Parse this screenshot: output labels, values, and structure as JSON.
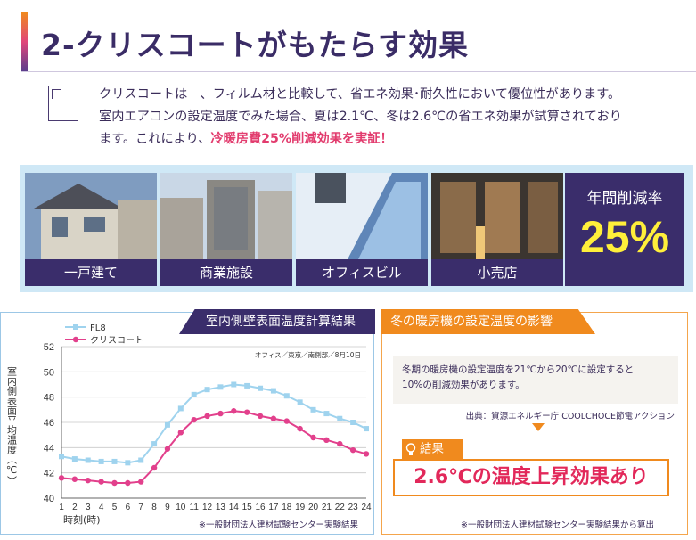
{
  "header": {
    "title": "2-クリスコートがもたらす効果"
  },
  "intro": {
    "line1": "クリスコートは　、フィルム材と比較して、省エネ効果･耐久性において優位性があります。",
    "line2": "室内エアコンの設定温度でみた場合、夏は2.1℃、冬は2.6℃の省エネ効果が試算されており",
    "line3_prefix": "ます。これにより、",
    "line3_highlight": "冷暖房費25%削減効果を実証！"
  },
  "buildings": [
    {
      "label": "一戸建て"
    },
    {
      "label": "商業施設"
    },
    {
      "label": "オフィスビル"
    },
    {
      "label": "小売店"
    }
  ],
  "reduction": {
    "label": "年間削減率",
    "value": "25%"
  },
  "chart_panel": {
    "heading": "室内側壁表面温度計算結果",
    "footnote": "※一般財団法人建材試験センター実験結果"
  },
  "chart_data": {
    "type": "line",
    "ylabel": "室内側表面平均温度（℃）",
    "xlabel": "時刻(時)",
    "annotation": "オフィス／東京／南側部／8月10日",
    "ylim": [
      40,
      52
    ],
    "yticks": [
      40,
      42,
      44,
      46,
      48,
      50,
      52
    ],
    "x": [
      1,
      2,
      3,
      4,
      5,
      6,
      7,
      8,
      9,
      10,
      11,
      12,
      13,
      14,
      15,
      16,
      17,
      18,
      19,
      20,
      21,
      22,
      23,
      24
    ],
    "series": [
      {
        "name": "FL8",
        "color": "#9fd3ee",
        "values": [
          43.3,
          43.1,
          43.0,
          42.9,
          42.9,
          42.8,
          43.0,
          44.3,
          45.8,
          47.1,
          48.2,
          48.6,
          48.8,
          49.0,
          48.9,
          48.7,
          48.5,
          48.1,
          47.6,
          47.0,
          46.7,
          46.3,
          46.0,
          45.5
        ]
      },
      {
        "name": "クリスコート",
        "color": "#e2408c",
        "values": [
          41.6,
          41.5,
          41.4,
          41.3,
          41.2,
          41.2,
          41.3,
          42.4,
          43.9,
          45.2,
          46.2,
          46.5,
          46.7,
          46.9,
          46.8,
          46.5,
          46.3,
          46.1,
          45.5,
          44.8,
          44.6,
          44.3,
          43.8,
          43.5
        ]
      }
    ]
  },
  "winter_panel": {
    "heading": "冬の暖房機の設定温度の影響",
    "note_line1": "冬期の暖房機の設定温度を21℃から20℃に設定すると",
    "note_line2": "10%の削減効果があります。",
    "source": "出典：資源エネルギー庁 COOLCHOCE節電アクション",
    "result_label": "結果",
    "result_text": "2.6℃の温度上昇効果あり",
    "footnote": "※一般財団法人建材試験センター実験結果から算出"
  },
  "colors": {
    "navy": "#3a2d6b",
    "orange": "#f08a1e",
    "pink": "#e23c6e",
    "lightblue": "#cfe8f6"
  }
}
